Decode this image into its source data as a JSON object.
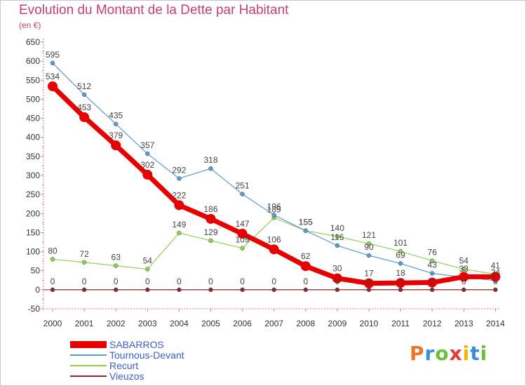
{
  "header": {
    "title": "Evolution du Montant de la Dette par Habitant",
    "unit": "(en €)"
  },
  "logo": {
    "text": "Proxiti",
    "letters": [
      "P",
      "r",
      "o",
      "x",
      "i",
      "t",
      "i"
    ],
    "colors": [
      "#e8772e",
      "#3a8fd6",
      "#6cbf3a",
      "#e53935",
      "#f4b400",
      "#3a8fd6",
      "#6cbf3a"
    ]
  },
  "chart_data": {
    "type": "line",
    "x": [
      "2000",
      "2001",
      "2002",
      "2003",
      "2004",
      "2005",
      "2006",
      "2007",
      "2008",
      "2009",
      "2010",
      "2011",
      "2012",
      "2013",
      "2014"
    ],
    "yticks": [
      "-50",
      "0",
      "50",
      "100",
      "150",
      "200",
      "250",
      "300",
      "350",
      "400",
      "450",
      "500",
      "550",
      "600",
      "650"
    ],
    "ylim": [
      -50,
      650
    ],
    "grid": false,
    "legend_position": "bottom-left",
    "series": [
      {
        "name": "SABARROS",
        "color": "#e60000",
        "width": 7,
        "marker": 7,
        "values": [
          534,
          453,
          379,
          302,
          222,
          186,
          147,
          106,
          62,
          30,
          17,
          18,
          19,
          34,
          34
        ],
        "labels": [
          "534",
          "453",
          "379",
          "302",
          "222",
          "186",
          "147",
          "106",
          "62",
          "30",
          "17",
          "18",
          "",
          "",
          ""
        ]
      },
      {
        "name": "Tournous-Devant",
        "color": "#5b9bd5",
        "width": 1.2,
        "marker": 3,
        "values": [
          595,
          512,
          435,
          357,
          292,
          318,
          251,
          196,
          155,
          116,
          90,
          69,
          43,
          33,
          24
        ],
        "labels": [
          "595",
          "512",
          "435",
          "357",
          "292",
          "318",
          "251",
          "196",
          "155",
          "116",
          "90",
          "69",
          "43",
          "33",
          "24"
        ]
      },
      {
        "name": "Recurt",
        "color": "#8fd14f",
        "width": 1.2,
        "marker": 3,
        "values": [
          80,
          72,
          63,
          54,
          149,
          129,
          109,
          189,
          155,
          140,
          121,
          101,
          76,
          54,
          41
        ],
        "labels": [
          "80",
          "72",
          "63",
          "54",
          "149",
          "129",
          "109",
          "189",
          "155",
          "140",
          "121",
          "101",
          "76",
          "54",
          "41"
        ]
      },
      {
        "name": "Vieuzos",
        "color": "#8b2a2a",
        "width": 1.2,
        "marker": 3,
        "values": [
          0,
          0,
          0,
          0,
          0,
          0,
          0,
          0,
          0,
          0,
          0,
          0,
          0,
          0,
          0
        ],
        "labels": [
          "0",
          "0",
          "0",
          "0",
          "0",
          "0",
          "0",
          "0",
          "0",
          "0",
          "0",
          "0",
          "0",
          "0",
          "0"
        ]
      }
    ]
  }
}
